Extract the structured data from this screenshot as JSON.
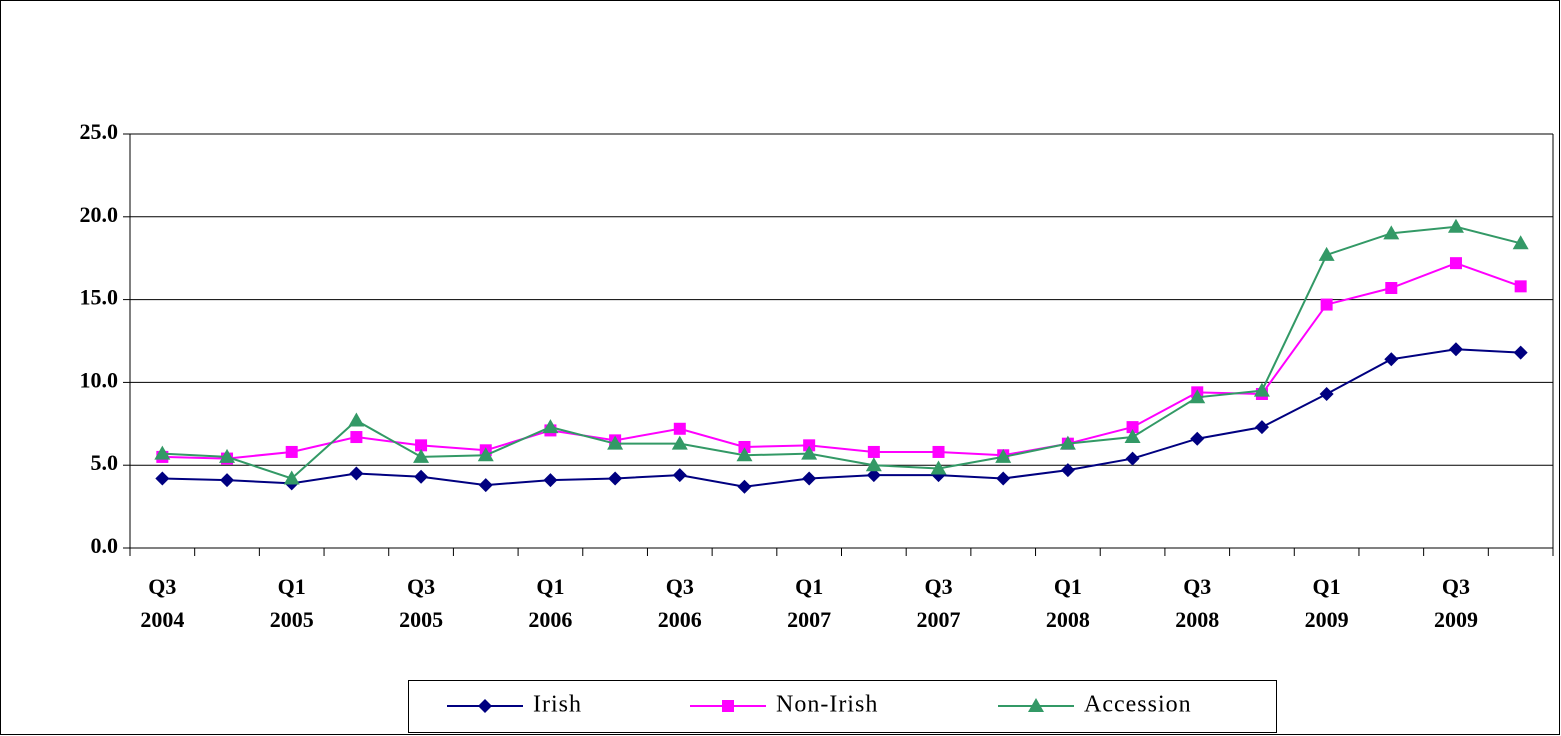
{
  "chart_data": {
    "type": "line",
    "categories": [
      "Q3\n2004",
      null,
      "Q1\n2005",
      null,
      "Q3\n2005",
      null,
      "Q1\n2006",
      null,
      "Q3\n2006",
      null,
      "Q1\n2007",
      null,
      "Q3\n2007",
      null,
      "Q1\n2008",
      null,
      "Q3\n2008",
      null,
      "Q1\n2009",
      null,
      "Q3\n2009",
      null
    ],
    "series": [
      {
        "name": "Irish",
        "color": "#000080",
        "marker": "diamond",
        "values": [
          4.2,
          4.1,
          3.9,
          4.5,
          4.3,
          3.8,
          4.1,
          4.2,
          4.4,
          3.7,
          4.2,
          4.4,
          4.4,
          4.2,
          4.7,
          5.4,
          6.6,
          7.3,
          9.3,
          11.4,
          12.0,
          11.8
        ]
      },
      {
        "name": "Non-Irish",
        "color": "#ff00ff",
        "marker": "square",
        "values": [
          5.5,
          5.4,
          5.8,
          6.7,
          6.2,
          5.9,
          7.1,
          6.5,
          7.2,
          6.1,
          6.2,
          5.8,
          5.8,
          5.6,
          6.3,
          7.3,
          9.4,
          9.3,
          14.7,
          15.7,
          17.2,
          15.8
        ]
      },
      {
        "name": "Accession",
        "color": "#339966",
        "marker": "triangle",
        "values": [
          5.7,
          5.5,
          4.2,
          7.7,
          5.5,
          5.6,
          7.3,
          6.3,
          6.3,
          5.6,
          5.7,
          5.0,
          4.8,
          5.5,
          6.3,
          6.7,
          9.1,
          9.5,
          17.7,
          19.0,
          19.4,
          18.4
        ]
      }
    ],
    "ylim": [
      0,
      25
    ],
    "yticks": [
      {
        "value": 0,
        "label": "0.0"
      },
      {
        "value": 5,
        "label": "5.0"
      },
      {
        "value": 10,
        "label": "10.0"
      },
      {
        "value": 15,
        "label": "15.0"
      },
      {
        "value": 20,
        "label": "20.0"
      },
      {
        "value": 25,
        "label": "25.0"
      }
    ],
    "grid": true,
    "legend": "bottom"
  }
}
